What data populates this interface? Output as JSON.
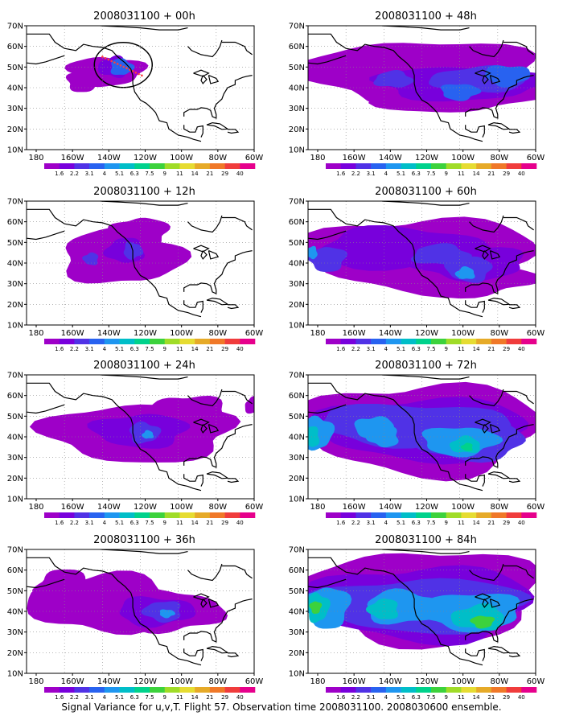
{
  "panels": [
    {
      "id": "p00",
      "title": "2008031100 + 00h"
    },
    {
      "id": "p48",
      "title": "2008031100 + 48h"
    },
    {
      "id": "p12",
      "title": "2008031100 + 12h"
    },
    {
      "id": "p60",
      "title": "2008031100 + 60h"
    },
    {
      "id": "p24",
      "title": "2008031100 + 24h"
    },
    {
      "id": "p72",
      "title": "2008031100 + 72h"
    },
    {
      "id": "p36",
      "title": "2008031100 + 36h"
    },
    {
      "id": "p84",
      "title": "2008031100 + 84h"
    }
  ],
  "lat_ticks": [
    "70N",
    "60N",
    "50N",
    "40N",
    "30N",
    "20N",
    "10N"
  ],
  "lon_ticks": [
    "180",
    "160W",
    "140W",
    "120W",
    "100W",
    "80W",
    "60W"
  ],
  "colorbar": {
    "labels": [
      "1.6",
      "2.2",
      "3.1",
      "4",
      "5.1",
      "6.3",
      "7.5",
      "9",
      "11",
      "14",
      "21",
      "29",
      "40"
    ],
    "colors": [
      "#9e00c8",
      "#7800dc",
      "#5032e6",
      "#2862f0",
      "#1e96f0",
      "#00bec8",
      "#00d28c",
      "#3cd23c",
      "#a0dc28",
      "#e6dc32",
      "#e6aa28",
      "#f07828",
      "#f03c3c",
      "#e6008c"
    ]
  },
  "caption": "Signal Variance for u,v,T. Flight 57. Observation time 2008031100. 2008030600 ensemble."
}
